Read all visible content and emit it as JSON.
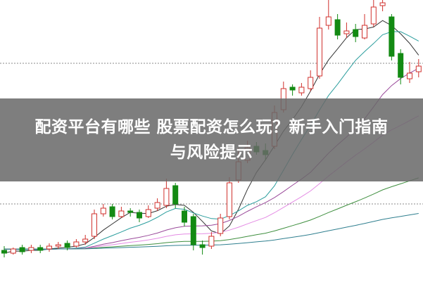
{
  "article_title": {
    "line1": "配资平台有哪些 股票配资怎么玩？新手入门指南",
    "line2": "与风险提示"
  },
  "chart_data": {
    "type": "candlestick",
    "grid": "dotted horizontal",
    "legend": "none",
    "axes_visible": false,
    "colors": {
      "up": "#d0312d",
      "down": "#138a13",
      "ma": [
        "#333333",
        "#2a9d9d",
        "#9a4a9a",
        "#e48be4",
        "#3f8f3f",
        "#2f7f8f"
      ]
    },
    "moving_average_periods": [
      5,
      10,
      20,
      30,
      60,
      120
    ],
    "open": [
      7.2,
      7.0,
      7.4,
      7.2,
      7.4,
      7.3,
      7.5,
      7.7,
      7.5,
      7.8,
      8.2,
      9.8,
      10.3,
      9.6,
      10.0,
      9.9,
      9.6,
      10.2,
      10.4,
      11.8,
      10.0,
      9.6,
      7.6,
      7.5,
      8.4,
      9.6,
      12.2,
      13.6,
      14.6,
      14.3,
      14.6,
      17.2,
      18.8,
      18.4,
      18.7,
      19.6,
      23.2,
      23.6,
      22.6,
      22.9,
      22.3,
      23.3,
      24.6,
      23.8,
      21.2,
      19.4,
      19.9
    ],
    "close": [
      7.0,
      7.3,
      7.1,
      7.4,
      7.2,
      7.5,
      7.6,
      7.4,
      7.8,
      8.0,
      9.8,
      10.2,
      9.6,
      10.0,
      9.9,
      9.5,
      10.1,
      10.6,
      11.6,
      10.5,
      9.2,
      7.6,
      7.4,
      8.2,
      9.5,
      12.0,
      13.5,
      14.5,
      14.2,
      14.0,
      17.0,
      18.7,
      18.6,
      18.8,
      19.5,
      23.0,
      23.8,
      22.5,
      22.8,
      22.4,
      23.2,
      24.5,
      24.8,
      21.0,
      19.5,
      19.8,
      20.3
    ],
    "high": [
      7.5,
      7.4,
      7.6,
      7.6,
      7.6,
      7.7,
      7.8,
      7.9,
      8.0,
      8.3,
      10.1,
      10.5,
      10.5,
      10.3,
      10.2,
      10.1,
      10.4,
      10.9,
      12.3,
      12.0,
      10.3,
      9.8,
      7.9,
      8.5,
      9.8,
      12.4,
      14.5,
      15.0,
      14.9,
      14.8,
      17.5,
      19.2,
      19.0,
      19.1,
      20.0,
      23.8,
      25.2,
      24.0,
      23.4,
      23.3,
      24.0,
      25.0,
      25.0,
      24.0,
      21.5,
      20.6,
      20.8
    ],
    "low": [
      6.7,
      6.9,
      6.9,
      7.0,
      7.0,
      7.1,
      7.3,
      7.2,
      7.4,
      7.6,
      8.0,
      9.6,
      9.4,
      9.5,
      9.6,
      9.2,
      9.5,
      10.0,
      10.2,
      10.2,
      8.9,
      7.2,
      6.9,
      7.3,
      8.2,
      9.4,
      12.0,
      13.4,
      14.0,
      13.6,
      14.4,
      17.0,
      18.2,
      18.2,
      18.5,
      19.4,
      22.9,
      22.2,
      22.3,
      22.0,
      22.2,
      23.1,
      24.2,
      20.7,
      19.0,
      19.1,
      19.5
    ]
  }
}
